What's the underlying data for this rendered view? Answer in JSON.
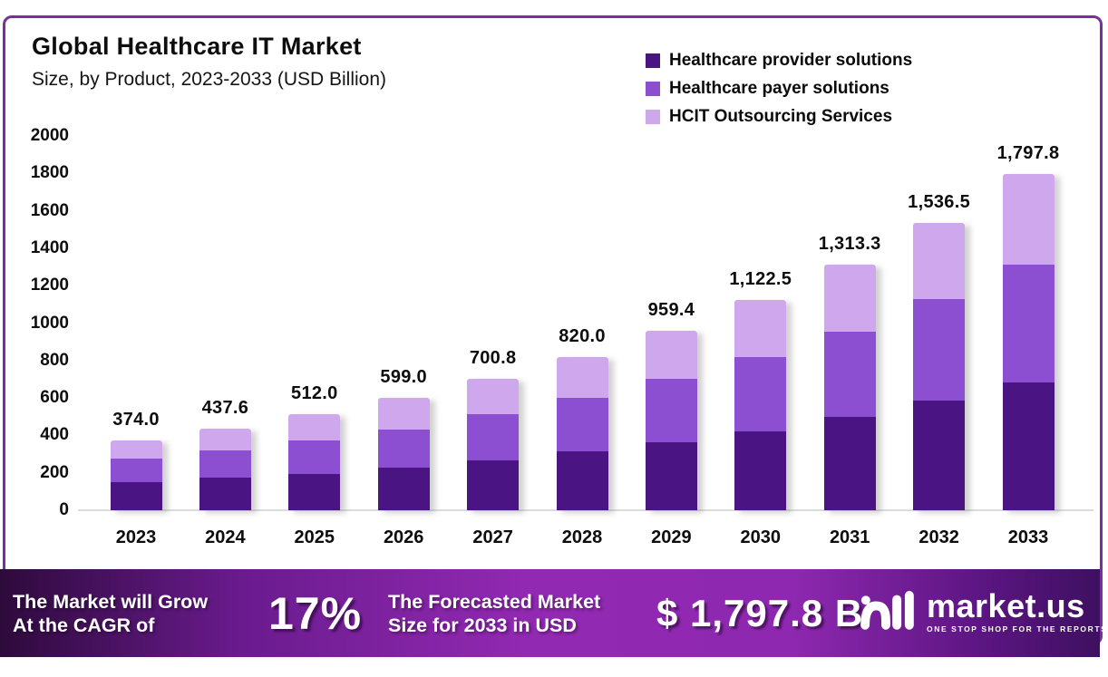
{
  "header": {
    "title": "Global Healthcare IT Market",
    "subtitle": "Size, by Product, 2023-2033 (USD Billion)"
  },
  "legend": [
    {
      "label": "Healthcare provider solutions",
      "color": "#4A1583"
    },
    {
      "label": "Healthcare payer solutions",
      "color": "#8C4FD2"
    },
    {
      "label": "HCIT Outsourcing Services",
      "color": "#CFA7EC"
    }
  ],
  "chart_data": {
    "type": "bar",
    "stacked": true,
    "title": "Global Healthcare IT Market Size, by Product, 2023-2033 (USD Billion)",
    "categories": [
      "2023",
      "2024",
      "2025",
      "2026",
      "2027",
      "2028",
      "2029",
      "2030",
      "2031",
      "2032",
      "2033"
    ],
    "series": [
      {
        "name": "Healthcare provider solutions",
        "color": "#4A1583",
        "values": [
          150.0,
          172.0,
          195.0,
          226.0,
          265.0,
          316.0,
          361.0,
          420.0,
          497.0,
          588.0,
          683.0
        ]
      },
      {
        "name": "Healthcare payer solutions",
        "color": "#8C4FD2",
        "values": [
          127.0,
          147.0,
          178.0,
          206.0,
          250.0,
          284.0,
          343.0,
          398.0,
          459.0,
          538.0,
          627.0
        ]
      },
      {
        "name": "HCIT Outsourcing Services",
        "color": "#CFA7EC",
        "values": [
          97.0,
          118.6,
          139.0,
          167.0,
          185.8,
          220.0,
          255.4,
          304.5,
          357.3,
          410.5,
          487.8
        ]
      }
    ],
    "totals": [
      374.0,
      437.6,
      512.0,
      599.0,
      700.8,
      820.0,
      959.4,
      1122.5,
      1313.3,
      1536.5,
      1797.8
    ],
    "total_labels": [
      "374.0",
      "437.6",
      "512.0",
      "599.0",
      "700.8",
      "820.0",
      "959.4",
      "1,122.5",
      "1,313.3",
      "1,536.5",
      "1,797.8"
    ],
    "ylim": [
      0,
      2000
    ],
    "yticks": [
      0,
      200,
      400,
      600,
      800,
      1000,
      1200,
      1400,
      1600,
      1800,
      2000
    ],
    "grid": false,
    "legend_position": "top-right"
  },
  "banner": {
    "growth_line1": "The Market will Grow",
    "growth_line2": "At the CAGR of",
    "cagr_value": "17%",
    "forecast_line1": "The Forecasted Market",
    "forecast_line2": "Size for 2033 in USD",
    "forecast_value": "$ 1,797.8 B",
    "brand_name": "market.us",
    "brand_tagline": "ONE STOP SHOP FOR THE REPORTS"
  },
  "colors": {
    "frame_border": "#7A2F9E",
    "banner_gradient_start": "#2E0A3C",
    "banner_gradient_mid": "#9229B2",
    "banner_gradient_end": "#3E1060",
    "axis_baseline": "#DCDCDC",
    "text": "#111111"
  }
}
